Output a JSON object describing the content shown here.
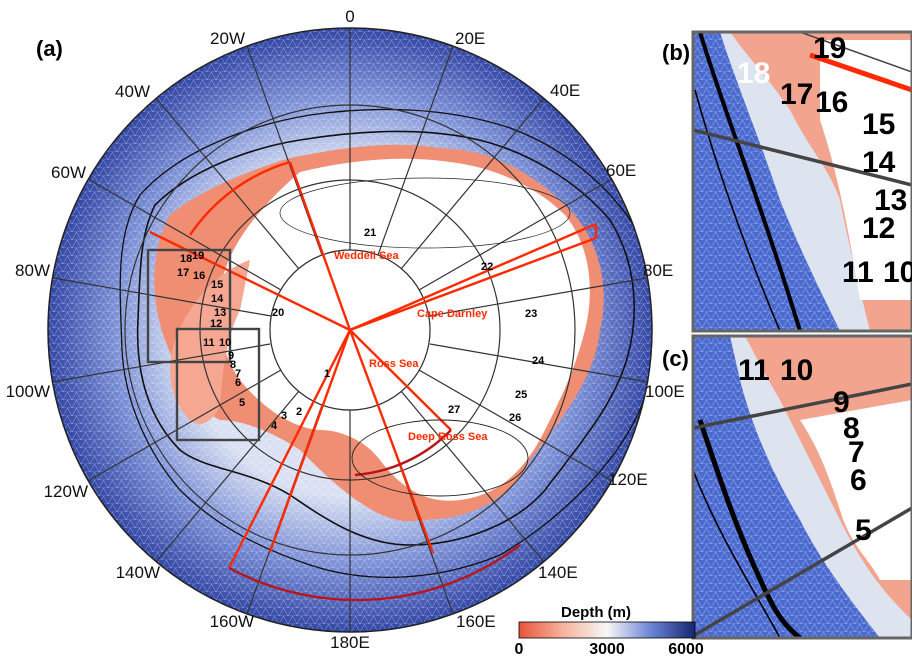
{
  "panels": {
    "a": "(a)",
    "b": "(b)",
    "c": "(c)"
  },
  "longitudes": [
    "0",
    "20E",
    "40E",
    "60E",
    "80E",
    "100E",
    "120E",
    "140E",
    "160E",
    "180E",
    "160W",
    "140W",
    "120W",
    "100W",
    "80W",
    "60W",
    "40W",
    "20W"
  ],
  "regions": {
    "weddell": "Weddell Sea",
    "darnley": "Cape Darnley",
    "ross": "Ross Sea",
    "deep_ross": "Deep Ross Sea"
  },
  "sectors": [
    "1",
    "2",
    "3",
    "4",
    "5",
    "6",
    "7",
    "8",
    "9",
    "10",
    "11",
    "12",
    "13",
    "14",
    "15",
    "16",
    "17",
    "18",
    "19",
    "20",
    "21",
    "22",
    "23",
    "24",
    "25",
    "26",
    "27"
  ],
  "inset_b_numbers": [
    "18",
    "19",
    "17",
    "16",
    "15",
    "14",
    "13",
    "12",
    "11",
    "10"
  ],
  "inset_c_numbers": [
    "11",
    "10",
    "9",
    "8",
    "7",
    "6",
    "5"
  ],
  "colorbar": {
    "title": "Depth (m)",
    "min": "0",
    "mid": "3000",
    "max": "6000"
  },
  "colors": {
    "shallow": "#ef6a4a",
    "mid": "#f7f7f7",
    "deep": "#1d2f7a",
    "regions": "#ff2a00"
  }
}
